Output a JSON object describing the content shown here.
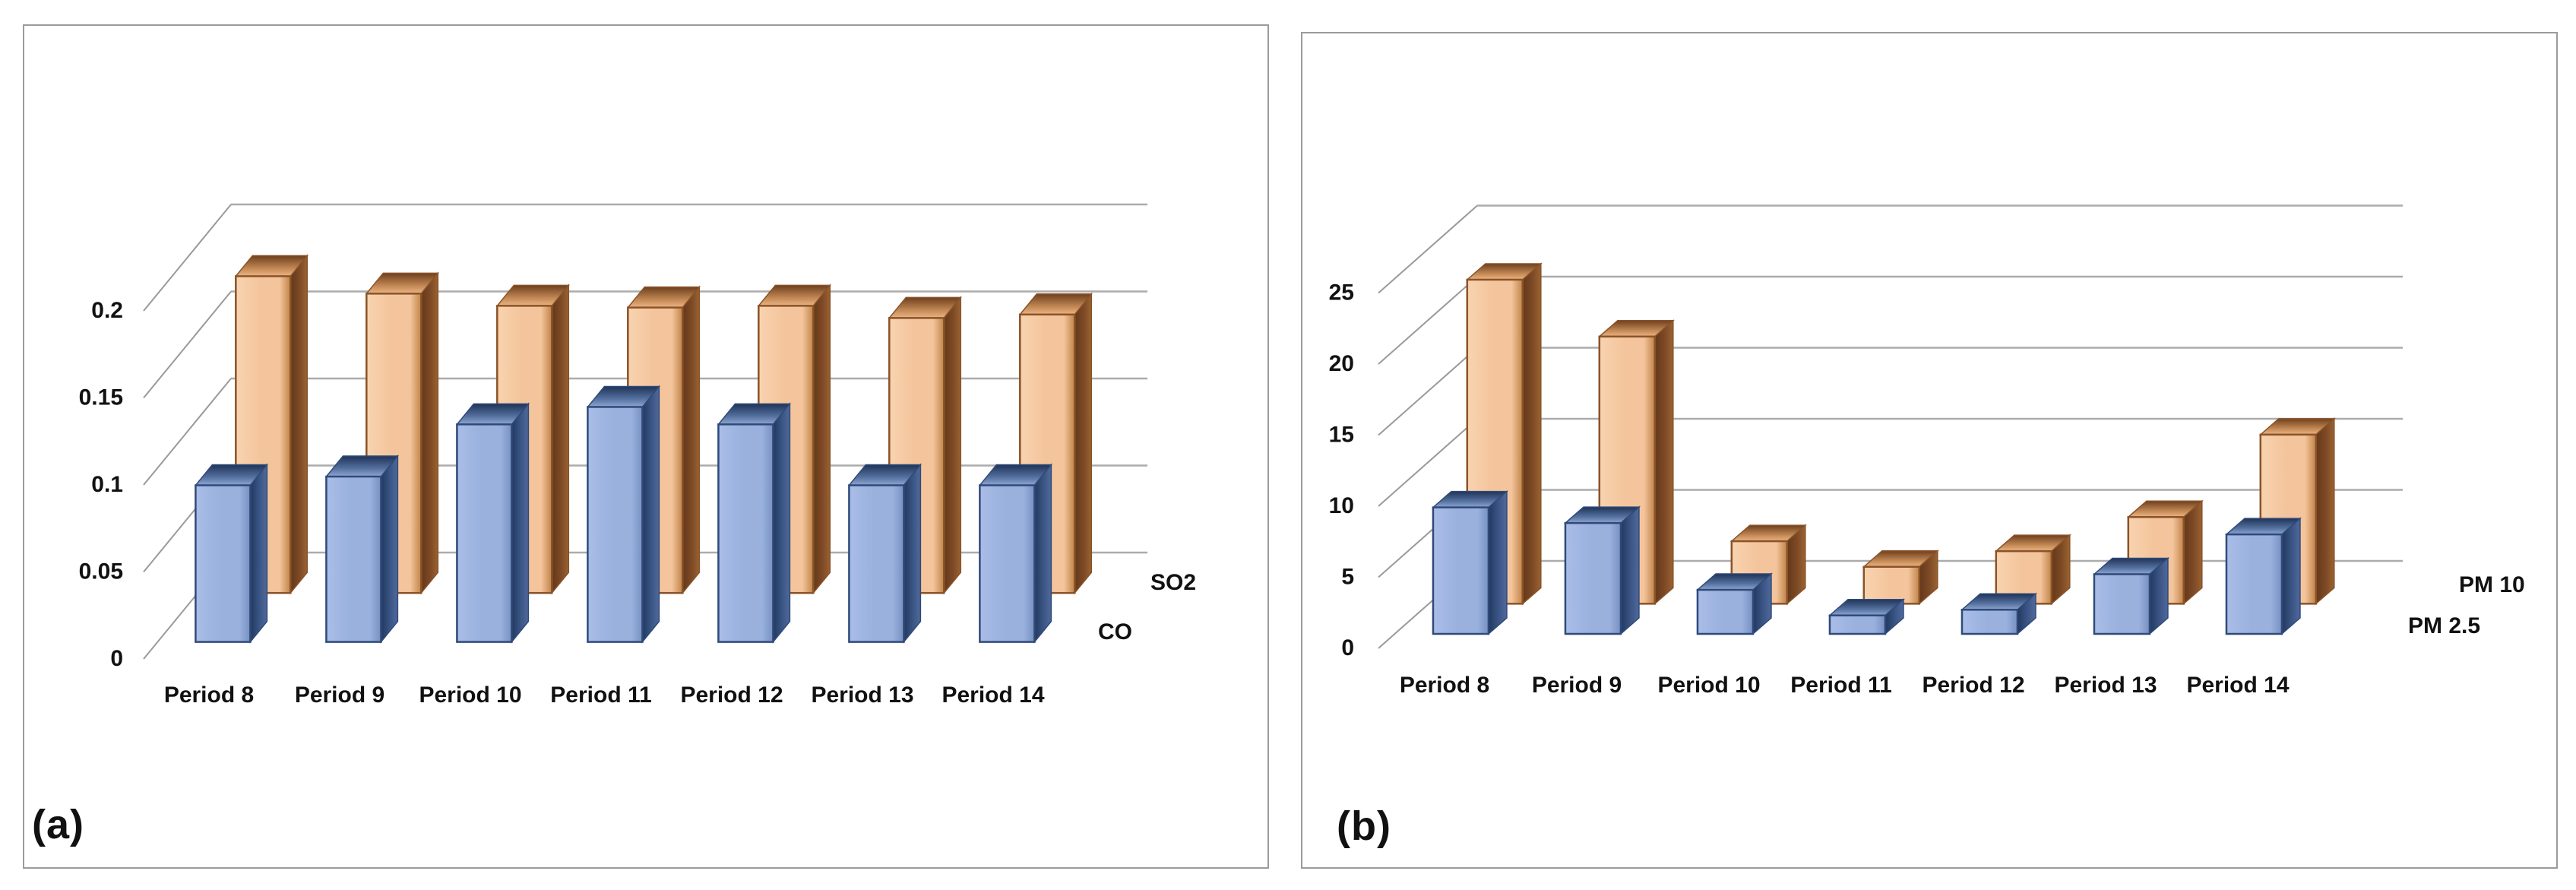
{
  "figure": {
    "description_visible_text_only": true,
    "background": "#FFFFFF"
  },
  "colors": {
    "background": "#FFFFFF",
    "panel_border": "#9B9B9B",
    "gridline": "#ACACAC",
    "tick_line": "#9A9A9A",
    "text": "#111111",
    "series_blue": {
      "front": "#9AB1DE",
      "front_light": "#A9BDE7",
      "front_dark": "#7690C0",
      "side": "#3A5686",
      "side_dark": "#22395F",
      "side_light": "#51699A",
      "top_front": "#8FA6D0",
      "top_mid": "#54709F",
      "top_back": "#1F3356",
      "outline": "#2F4A7A"
    },
    "series_orange": {
      "front": "#F4C59C",
      "front_light": "#F8D3B0",
      "front_dark": "#C08348",
      "side": "#7E4A26",
      "side_dark": "#63381A",
      "side_light": "#9A6332",
      "top_front": "#EDB584",
      "top_mid": "#C08653",
      "top_back": "#6E3F1E",
      "outline": "#8A5328"
    }
  },
  "chart_data": [
    {
      "id": "a",
      "panel_label": "(a)",
      "type": "bar",
      "variant": "3d-clustered-column",
      "title": "",
      "xlabel": "",
      "ylabel": "",
      "categories": [
        "Period 8",
        "Period 9",
        "Period 10",
        "Period 11",
        "Period 12",
        "Period 13",
        "Period 14"
      ],
      "series": [
        {
          "name": "CO",
          "color_key": "series_blue",
          "depth_row": "front",
          "values": [
            0.09,
            0.095,
            0.125,
            0.135,
            0.125,
            0.09,
            0.09
          ]
        },
        {
          "name": "SO2",
          "color_key": "series_orange",
          "depth_row": "back",
          "values": [
            0.182,
            0.172,
            0.165,
            0.164,
            0.165,
            0.158,
            0.16
          ]
        }
      ],
      "ylim": [
        0,
        0.2
      ],
      "y_ticks": [
        0,
        0.05,
        0.1,
        0.15,
        0.2
      ],
      "y_tick_labels": [
        "0",
        "0.05",
        "0.1",
        "0.15",
        "0.2"
      ],
      "grid": true,
      "legend_position": "right-depth-axis"
    },
    {
      "id": "b",
      "panel_label": "(b)",
      "type": "bar",
      "variant": "3d-clustered-column",
      "title": "",
      "xlabel": "",
      "ylabel": "",
      "categories": [
        "Period 8",
        "Period 9",
        "Period 10",
        "Period 11",
        "Period 12",
        "Period 13",
        "Period 14"
      ],
      "series": [
        {
          "name": "PM 2.5",
          "color_key": "series_blue",
          "depth_row": "front",
          "values": [
            8.9,
            7.8,
            3.1,
            1.3,
            1.7,
            4.2,
            7.0
          ]
        },
        {
          "name": "PM 10",
          "color_key": "series_orange",
          "depth_row": "back",
          "values": [
            22.8,
            18.8,
            4.4,
            2.6,
            3.7,
            6.1,
            11.9
          ]
        }
      ],
      "ylim": [
        0,
        25
      ],
      "y_ticks": [
        0,
        5,
        10,
        15,
        20,
        25
      ],
      "y_tick_labels": [
        "0",
        "5",
        "10",
        "15",
        "20",
        "25"
      ],
      "grid": true,
      "legend_position": "right-depth-axis"
    }
  ]
}
